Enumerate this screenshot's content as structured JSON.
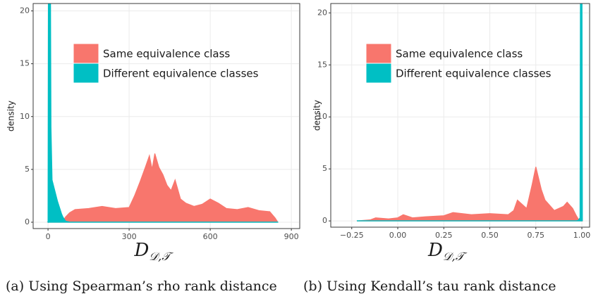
{
  "chart_data": [
    {
      "type": "area",
      "caption": "(a) Using Spearman’s rho rank distance",
      "x_label": "D",
      "x_label_sub": "𝒟,𝒯",
      "y_label": "density",
      "x": [
        0,
        2,
        8,
        11,
        15,
        25,
        35,
        45,
        50,
        55,
        60,
        65,
        80,
        100,
        150,
        200,
        250,
        300,
        320,
        340,
        360,
        375,
        385,
        395,
        410,
        425,
        440,
        455,
        470,
        490,
        510,
        540,
        570,
        600,
        630,
        660,
        700,
        740,
        780,
        820,
        840,
        850
      ],
      "series": [
        {
          "name": "Same equivalence class",
          "color": "#f8766d",
          "values": [
            0,
            0,
            0,
            0,
            0,
            0,
            0,
            0,
            0,
            0.1,
            0.3,
            0.5,
            0.9,
            1.2,
            1.3,
            1.5,
            1.3,
            1.4,
            2.5,
            3.8,
            5.2,
            6.3,
            5.0,
            6.5,
            5.2,
            4.5,
            3.5,
            3.0,
            4.0,
            2.2,
            1.8,
            1.5,
            1.7,
            2.2,
            1.8,
            1.3,
            1.2,
            1.4,
            1.1,
            1.0,
            0.4,
            0
          ]
        },
        {
          "name": "Different equivalence classes",
          "color": "#00bfc4",
          "values": [
            0,
            30,
            30,
            9,
            4,
            3,
            2,
            1.2,
            0.8,
            0.5,
            0.3,
            0.1,
            0.02,
            0.02,
            0.02,
            0.02,
            0.02,
            0.02,
            0.02,
            0.02,
            0.02,
            0.02,
            0.02,
            0.02,
            0.02,
            0.02,
            0.02,
            0.02,
            0.02,
            0.02,
            0.02,
            0.02,
            0.02,
            0.02,
            0.02,
            0.02,
            0.02,
            0.02,
            0.02,
            0.02,
            0.02,
            0.02
          ]
        }
      ],
      "xlim": [
        -55,
        931
      ],
      "xticks": [
        0,
        300,
        600,
        900
      ],
      "ylim": [
        -0.6,
        20.7
      ],
      "yticks": [
        0,
        5,
        10,
        15,
        20
      ],
      "grid": true,
      "legend": "upper center"
    },
    {
      "type": "area",
      "caption": "(b) Using Kendall’s tau rank distance",
      "x_label": "D",
      "x_label_sub": "𝒟,𝒯",
      "y_label": "density",
      "x": [
        -0.22,
        -0.15,
        -0.12,
        -0.05,
        0.0,
        0.03,
        0.08,
        0.15,
        0.25,
        0.3,
        0.4,
        0.5,
        0.6,
        0.63,
        0.65,
        0.7,
        0.73,
        0.75,
        0.78,
        0.8,
        0.85,
        0.9,
        0.92,
        0.95,
        0.97,
        0.98,
        0.99,
        0.993,
        1.0,
        1.003
      ],
      "series": [
        {
          "name": "Same equivalence class",
          "color": "#f8766d",
          "values": [
            0,
            0.1,
            0.3,
            0.2,
            0.3,
            0.6,
            0.3,
            0.4,
            0.5,
            0.8,
            0.6,
            0.7,
            0.6,
            1.0,
            2.0,
            1.2,
            3.5,
            5.2,
            3.0,
            2.0,
            1.0,
            1.4,
            1.8,
            1.2,
            0.5,
            0.2,
            0,
            0,
            0,
            0
          ]
        },
        {
          "name": "Different equivalence classes",
          "color": "#00bfc4",
          "values": [
            0.02,
            0.02,
            0.02,
            0.02,
            0.02,
            0.02,
            0.02,
            0.02,
            0.02,
            0.02,
            0.02,
            0.02,
            0.02,
            0.02,
            0.02,
            0.02,
            0.02,
            0.02,
            0.02,
            0.02,
            0.02,
            0.02,
            0.02,
            0.02,
            0.02,
            0.05,
            0.3,
            30,
            30,
            0
          ]
        }
      ],
      "xlim": [
        -0.364,
        1.042
      ],
      "xticks": [
        {
          "value": -0.25,
          "label": "−0.25"
        },
        {
          "value": 0,
          "label": "0.00"
        },
        {
          "value": 0.25,
          "label": "0.25"
        },
        {
          "value": 0.5,
          "label": "0.50"
        },
        {
          "value": 0.75,
          "label": "0.75"
        },
        {
          "value": 1,
          "label": "1.00"
        }
      ],
      "ylim": [
        -0.6,
        20.9
      ],
      "yticks": [
        0,
        5,
        10,
        15,
        20
      ],
      "grid": true,
      "legend": "upper center"
    }
  ]
}
